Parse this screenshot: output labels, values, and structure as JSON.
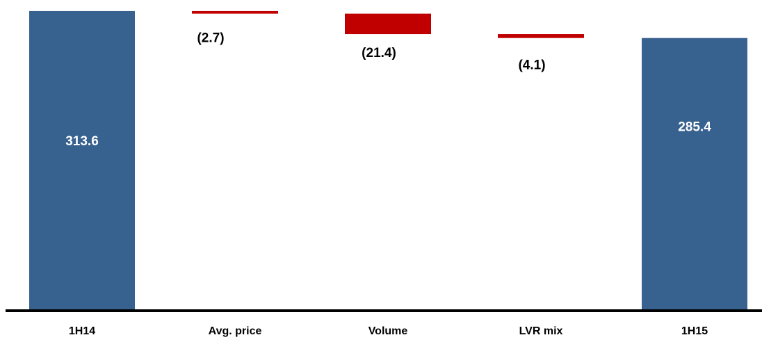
{
  "chart_data": {
    "type": "bar",
    "subtype": "waterfall",
    "title": "",
    "xlabel": "",
    "ylabel": "",
    "categories": [
      "1H14",
      "Avg. price",
      "Volume",
      "LVR mix",
      "1H15"
    ],
    "values": [
      313.6,
      -2.7,
      -21.4,
      -4.1,
      285.4
    ],
    "kinds": [
      "total",
      "delta",
      "delta",
      "delta",
      "total"
    ],
    "value_labels": [
      "313.6",
      "(2.7)",
      "(21.4)",
      "(4.1)",
      "285.4"
    ],
    "ylim": [
      0,
      315
    ],
    "grid": false,
    "legend": "none",
    "colors": {
      "total": "#37618F",
      "decrease": "#C00000",
      "axis": "#000000",
      "total_label": "#ffffff",
      "delta_label": "#000000"
    }
  }
}
